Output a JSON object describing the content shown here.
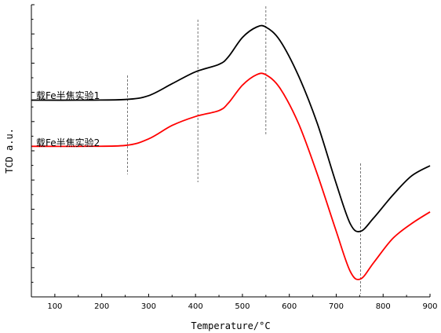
{
  "chart_data": {
    "type": "line",
    "xlabel": "Temperature/°C",
    "ylabel": "TCD  a.u.",
    "xlim": [
      50,
      900
    ],
    "x_ticks": [
      100,
      200,
      300,
      400,
      500,
      600,
      700,
      800,
      900
    ],
    "y_ticks_count": 10,
    "grid": false,
    "legend": "inline labels at left",
    "reference_lines_x": [
      255,
      405,
      550,
      752
    ],
    "series": [
      {
        "name": "载Fe半焦实验1",
        "color": "#000000",
        "x": [
          50,
          150,
          250,
          300,
          350,
          400,
          450,
          470,
          500,
          530,
          550,
          580,
          620,
          660,
          700,
          730,
          752,
          780,
          820,
          860,
          900
        ],
        "y": [
          5.4,
          5.4,
          5.42,
          5.55,
          5.95,
          6.35,
          6.6,
          6.85,
          7.5,
          7.85,
          7.85,
          7.4,
          6.2,
          4.6,
          2.6,
          1.25,
          1.0,
          1.45,
          2.2,
          2.85,
          3.2
        ]
      },
      {
        "name": "载Fe半焦实验2",
        "color": "#ff0000",
        "x": [
          50,
          150,
          250,
          300,
          350,
          400,
          450,
          470,
          500,
          530,
          550,
          580,
          620,
          660,
          700,
          730,
          752,
          780,
          820,
          860,
          900
        ],
        "y": [
          3.85,
          3.85,
          3.88,
          4.1,
          4.55,
          4.85,
          5.05,
          5.3,
          5.9,
          6.25,
          6.25,
          5.8,
          4.6,
          2.9,
          1.0,
          -0.35,
          -0.6,
          -0.05,
          0.75,
          1.25,
          1.65
        ]
      }
    ]
  }
}
